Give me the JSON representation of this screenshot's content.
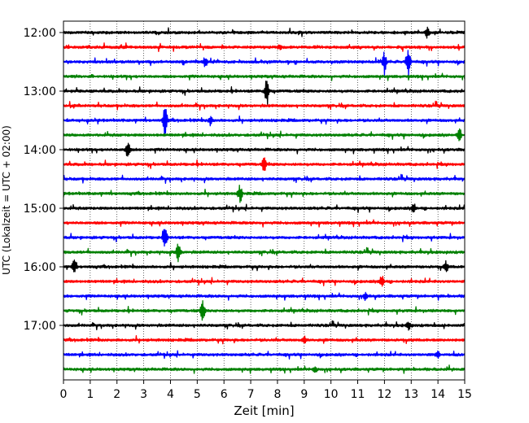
{
  "chart_data": {
    "type": "line",
    "subtype": "helicorder-seismogram",
    "xlabel": "Zeit  [min]",
    "ylabel": "UTC (Lokalzeit = UTC + 02:00)",
    "xlim": [
      0,
      15
    ],
    "xticks": [
      "0",
      "1",
      "2",
      "3",
      "4",
      "5",
      "6",
      "7",
      "8",
      "9",
      "10",
      "11",
      "12",
      "13",
      "14",
      "15"
    ],
    "y_tick_labels": [
      "12:00",
      "13:00",
      "14:00",
      "15:00",
      "16:00",
      "17:00"
    ],
    "grid": "vertical dotted lines at each minute",
    "trace_interval_minutes": 15,
    "trace_color_cycle": [
      "#000000",
      "#ff0000",
      "#0000ff",
      "#008000"
    ],
    "traces": [
      {
        "start": "12:00",
        "color": "#000000",
        "events": [
          {
            "t": 13.6,
            "amp": 0.5
          }
        ]
      },
      {
        "start": "12:15",
        "color": "#ff0000",
        "events": [
          {
            "t": 8.1,
            "amp": 0.3
          }
        ]
      },
      {
        "start": "12:30",
        "color": "#0000ff",
        "events": [
          {
            "t": 5.3,
            "amp": 0.5
          },
          {
            "t": 12.0,
            "amp": 1.0
          },
          {
            "t": 12.9,
            "amp": 1.7
          }
        ]
      },
      {
        "start": "12:45",
        "color": "#008000",
        "events": []
      },
      {
        "start": "13:00",
        "color": "#000000",
        "events": [
          {
            "t": 7.6,
            "amp": 1.6
          }
        ]
      },
      {
        "start": "13:15",
        "color": "#ff0000",
        "events": []
      },
      {
        "start": "13:30",
        "color": "#0000ff",
        "events": [
          {
            "t": 3.8,
            "amp": 1.6
          },
          {
            "t": 5.5,
            "amp": 0.5
          }
        ]
      },
      {
        "start": "13:45",
        "color": "#008000",
        "events": [
          {
            "t": 14.8,
            "amp": 0.7
          }
        ]
      },
      {
        "start": "14:00",
        "color": "#000000",
        "events": [
          {
            "t": 2.4,
            "amp": 0.9
          }
        ]
      },
      {
        "start": "14:15",
        "color": "#ff0000",
        "events": [
          {
            "t": 7.5,
            "amp": 0.7
          }
        ]
      },
      {
        "start": "14:30",
        "color": "#0000ff",
        "events": []
      },
      {
        "start": "14:45",
        "color": "#008000",
        "events": [
          {
            "t": 6.6,
            "amp": 0.9
          }
        ]
      },
      {
        "start": "15:00",
        "color": "#000000",
        "events": [
          {
            "t": 13.1,
            "amp": 0.5
          }
        ]
      },
      {
        "start": "15:15",
        "color": "#ff0000",
        "events": []
      },
      {
        "start": "15:30",
        "color": "#0000ff",
        "events": [
          {
            "t": 3.8,
            "amp": 1.2
          }
        ]
      },
      {
        "start": "15:45",
        "color": "#008000",
        "events": [
          {
            "t": 4.3,
            "amp": 1.1
          }
        ]
      },
      {
        "start": "16:00",
        "color": "#000000",
        "events": [
          {
            "t": 0.4,
            "amp": 0.7
          },
          {
            "t": 14.3,
            "amp": 0.5
          }
        ]
      },
      {
        "start": "16:15",
        "color": "#ff0000",
        "events": [
          {
            "t": 11.9,
            "amp": 0.7
          }
        ]
      },
      {
        "start": "16:30",
        "color": "#0000ff",
        "events": [
          {
            "t": 11.3,
            "amp": 0.4
          }
        ]
      },
      {
        "start": "16:45",
        "color": "#008000",
        "events": [
          {
            "t": 5.2,
            "amp": 1.1
          }
        ]
      },
      {
        "start": "17:00",
        "color": "#000000",
        "events": [
          {
            "t": 12.9,
            "amp": 0.4
          }
        ]
      },
      {
        "start": "17:15",
        "color": "#ff0000",
        "events": [
          {
            "t": 9.0,
            "amp": 0.3
          }
        ]
      },
      {
        "start": "17:30",
        "color": "#0000ff",
        "events": [
          {
            "t": 14.0,
            "amp": 0.3
          }
        ]
      },
      {
        "start": "17:45",
        "color": "#008000",
        "events": [
          {
            "t": 9.4,
            "amp": 0.3
          }
        ]
      }
    ]
  }
}
